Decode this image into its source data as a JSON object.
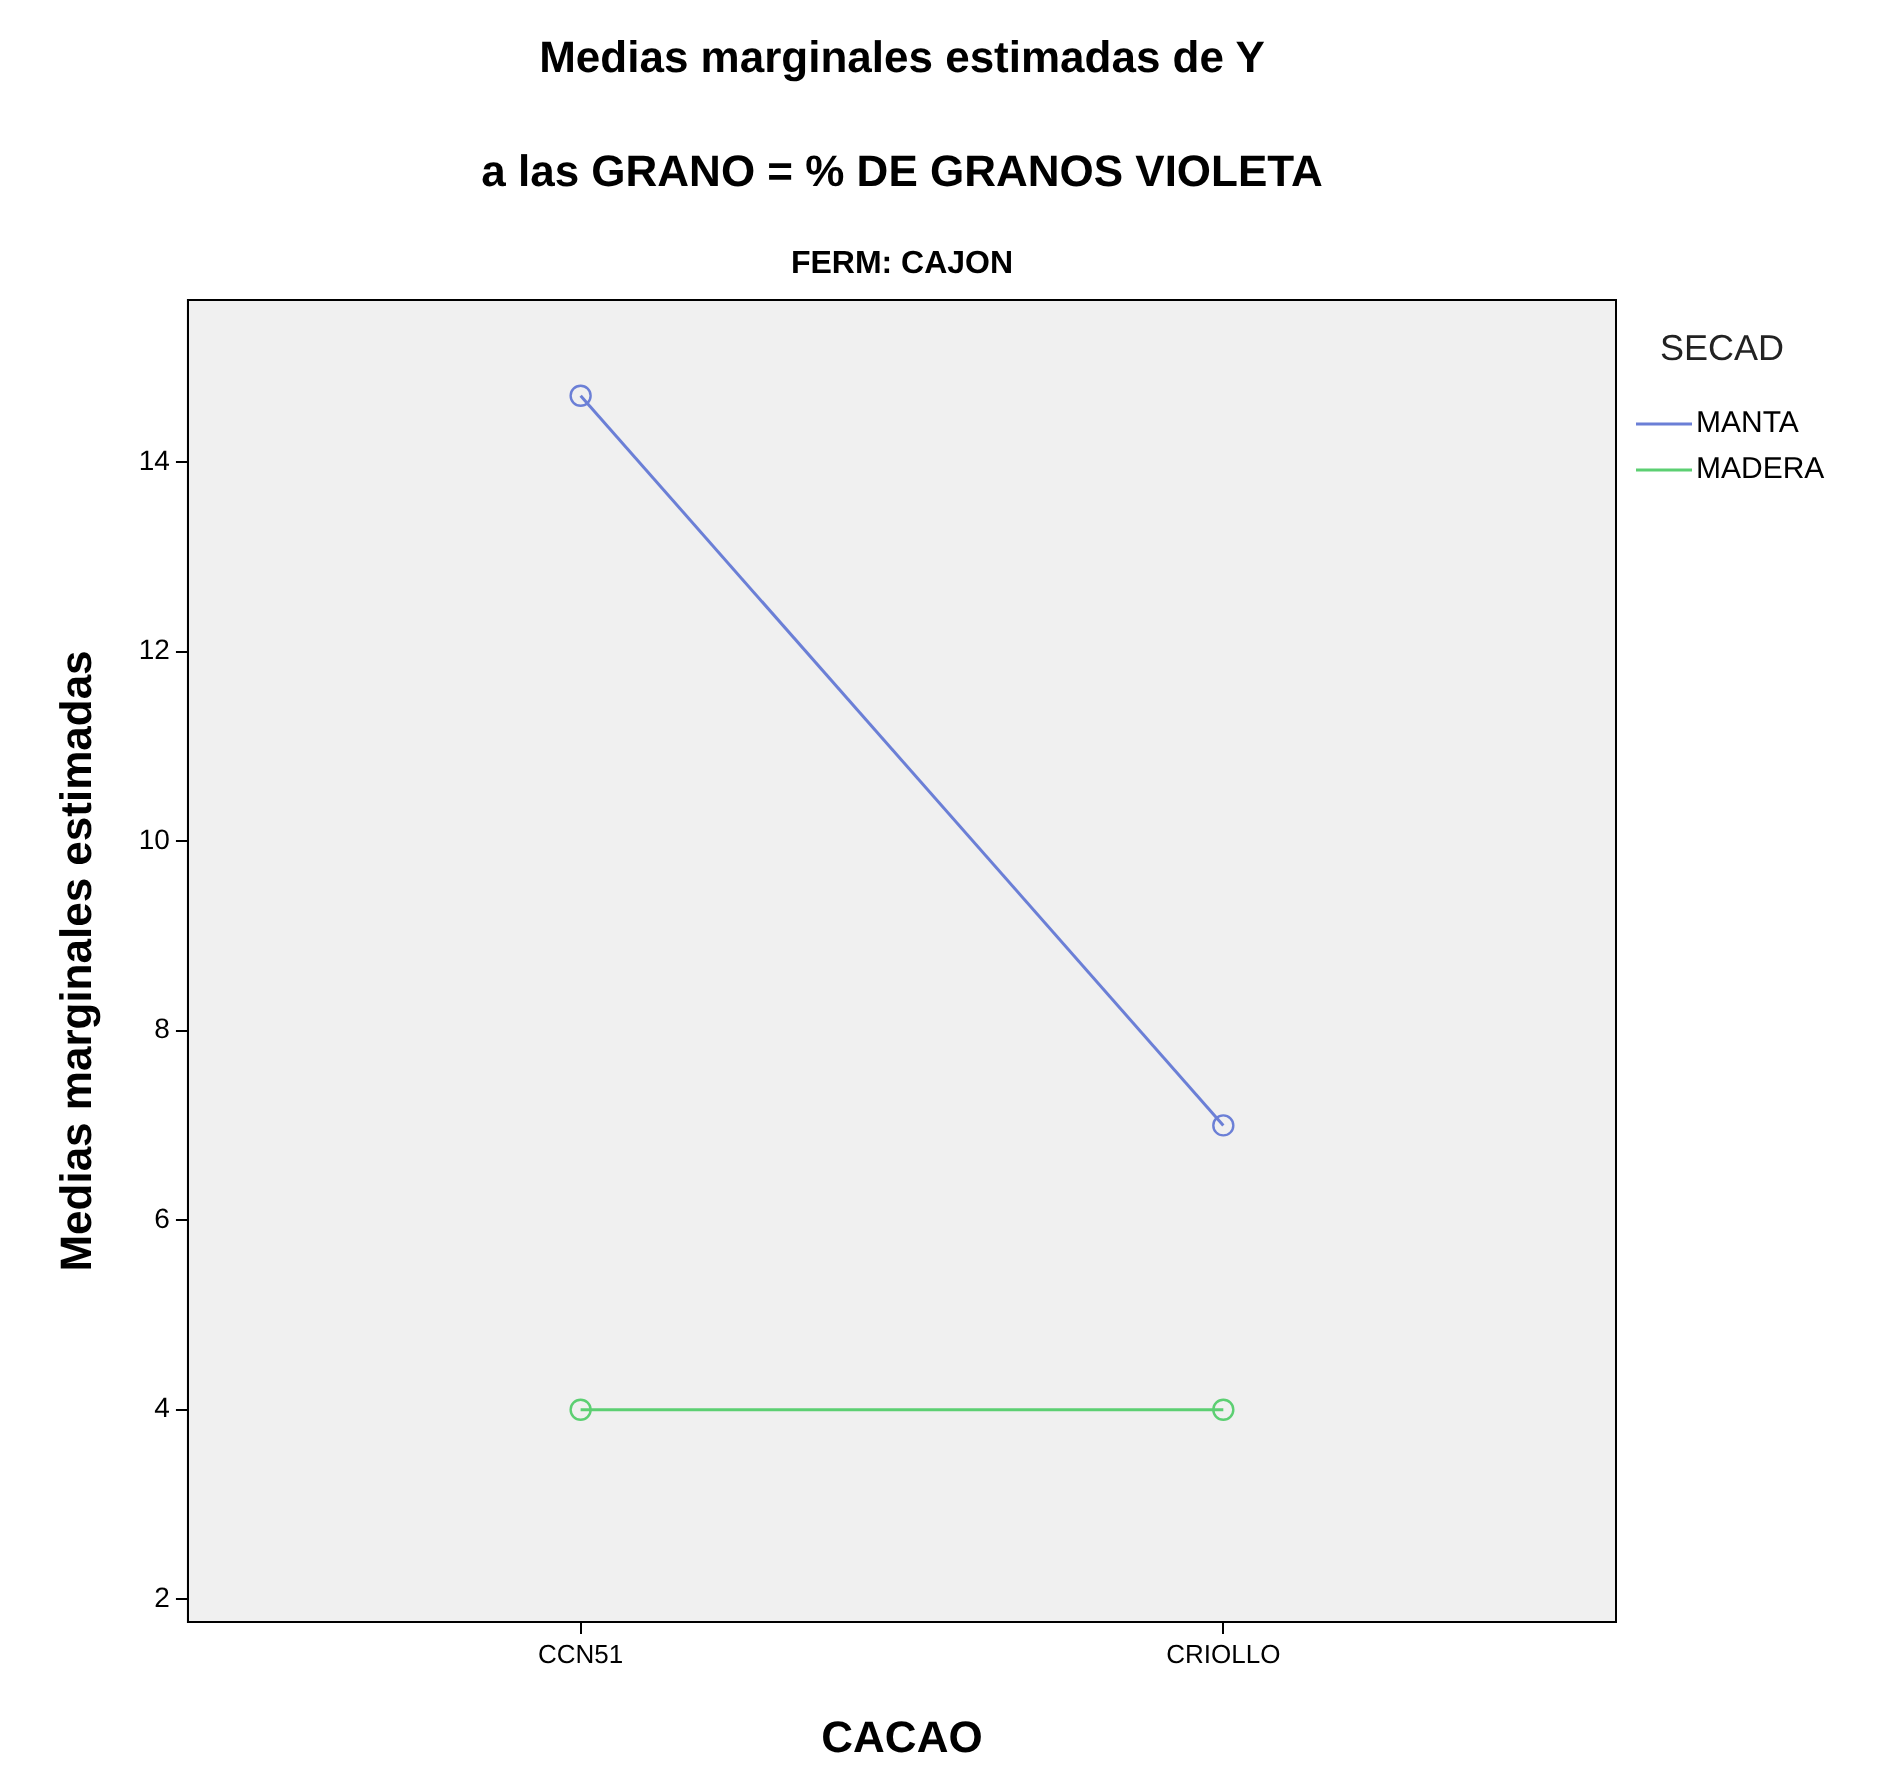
{
  "chart_data": {
    "type": "line",
    "title": "Medias marginales estimadas de Y",
    "subtitle": "a las GRANO = % DE GRANOS VIOLETA",
    "annotations": [
      "FERM: CAJON"
    ],
    "xlabel": "CACAO",
    "ylabel": "Medias marginales estimadas",
    "legend_title": "SECAD",
    "categories": [
      "CCN51",
      "CRIOLLO"
    ],
    "series": [
      {
        "name": "MANTA",
        "color": "#6b7fd6",
        "values": [
          14.7,
          7.0
        ]
      },
      {
        "name": "MADERA",
        "color": "#5ccf72",
        "values": [
          4.0,
          4.0
        ]
      }
    ],
    "ylim": [
      1.76,
      15.71
    ],
    "yticks": [
      2,
      4,
      6,
      8,
      10,
      12,
      14
    ],
    "grid": false,
    "legend": "top right",
    "marker": "circle",
    "line_style": "solid"
  }
}
